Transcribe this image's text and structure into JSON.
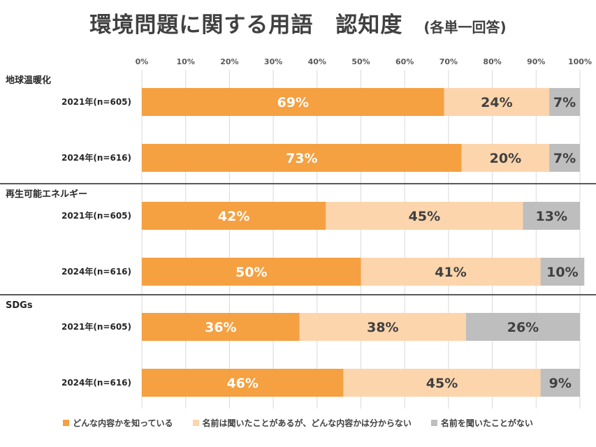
{
  "title": "環境問題に関する用語　認知度",
  "subtitle": "(各単一回答)",
  "chart_data": {
    "type": "bar",
    "orientation": "horizontal",
    "stacked": "percent",
    "x_ticks": [
      "0%",
      "10%",
      "20%",
      "30%",
      "40%",
      "50%",
      "60%",
      "70%",
      "80%",
      "90%",
      "100%"
    ],
    "xlim": [
      0,
      100
    ],
    "grid": true,
    "legend_position": "bottom",
    "series": [
      {
        "name": "どんな内容かを知っている",
        "color": "#F5A041"
      },
      {
        "name": "名前は聞いたことがあるが、どんな内容かは分からない",
        "color": "#FCD5AD"
      },
      {
        "name": "名前を聞いたことがない",
        "color": "#BEBEBE"
      }
    ],
    "groups": [
      {
        "label": "地球温暖化",
        "rows": [
          {
            "label": "2021年(n=605)",
            "values": [
              69,
              24,
              7
            ]
          },
          {
            "label": "2024年(n=616)",
            "values": [
              73,
              20,
              7
            ]
          }
        ]
      },
      {
        "label": "再生可能エネルギー",
        "rows": [
          {
            "label": "2021年(n=605)",
            "values": [
              42,
              45,
              13
            ]
          },
          {
            "label": "2024年(n=616)",
            "values": [
              50,
              41,
              10
            ]
          }
        ]
      },
      {
        "label": "SDGs",
        "rows": [
          {
            "label": "2021年(n=605)",
            "values": [
              36,
              38,
              26
            ]
          },
          {
            "label": "2024年(n=616)",
            "values": [
              46,
              45,
              9
            ]
          }
        ]
      }
    ]
  }
}
